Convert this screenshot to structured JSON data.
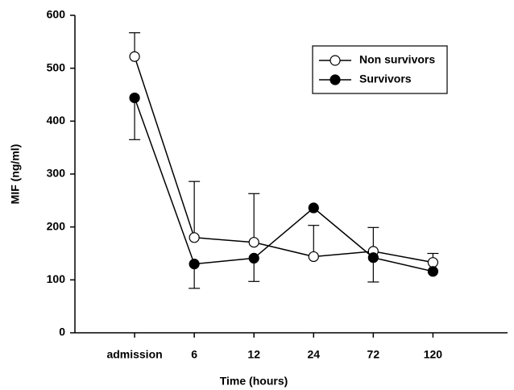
{
  "chart_data": {
    "type": "line",
    "x_label": "Time (hours)",
    "y_label": "MIF (ng/ml)",
    "categories": [
      "admission",
      "6",
      "12",
      "24",
      "72",
      "120"
    ],
    "ylim": [
      0,
      600
    ],
    "yticks": [
      0,
      100,
      200,
      300,
      400,
      500,
      600
    ],
    "legend": "upper right",
    "grid": false,
    "series": [
      {
        "name": "Non survivors",
        "color": "#000000",
        "marker": "open",
        "error_bars": "up",
        "values": [
          522,
          180,
          171,
          144,
          154,
          133
        ],
        "errors": [
          45,
          106,
          92,
          59,
          45,
          17
        ]
      },
      {
        "name": "Survivors",
        "color": "#000000",
        "marker": "filled",
        "error_bars": "down",
        "values": [
          444,
          130,
          141,
          236,
          142,
          116
        ],
        "errors": [
          79,
          46,
          44,
          null,
          46,
          null
        ]
      }
    ]
  }
}
